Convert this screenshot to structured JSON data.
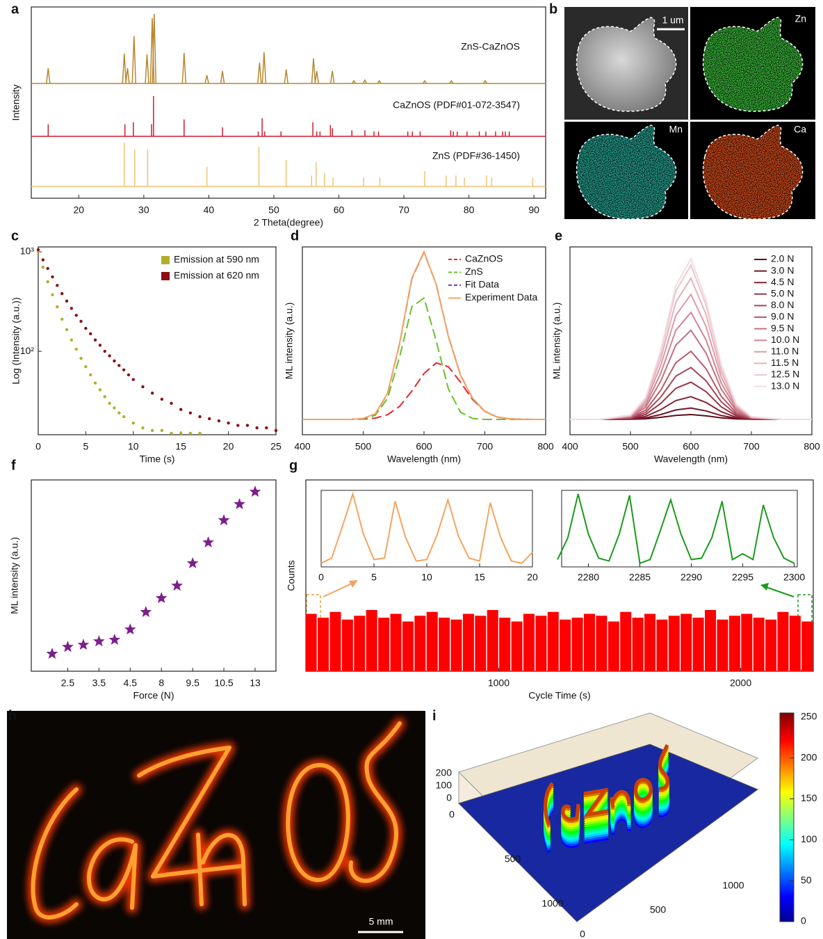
{
  "chart_data": [
    {
      "type": "xrd",
      "panel": "a",
      "xlabel": "2 Theta(degree)",
      "ylabel": "Intensity",
      "xlim": [
        12.7,
        91.8
      ],
      "xticks": [
        20,
        30,
        40,
        50,
        60,
        70,
        80,
        90
      ],
      "ylim": [
        0,
        100
      ],
      "series": [
        {
          "name": "ZnS-CaZnOS",
          "color": "#b8862b",
          "style": "pattern",
          "x": [
            15.3,
            27.0,
            27.5,
            28.5,
            30.5,
            31.3,
            31.6,
            36.2,
            39.7,
            42.1,
            47.8,
            48.5,
            51.9,
            56.1,
            56.6,
            59.0,
            62.3,
            64.0,
            66.2,
            73.2,
            77.3,
            82.5
          ],
          "values": [
            22,
            43,
            22,
            68,
            42,
            94,
            100,
            44,
            12,
            18,
            30,
            45,
            20,
            36,
            18,
            18,
            4,
            5,
            4,
            4,
            4,
            4
          ]
        },
        {
          "name": "CaZnOS (PDF#01-072-3547)",
          "color": "#d11a2a",
          "style": "sticks",
          "x": [
            15.3,
            27.1,
            28.4,
            31.2,
            31.5,
            36.2,
            42.1,
            47.6,
            48.2,
            48.6,
            51.1,
            56.0,
            56.6,
            57.1,
            58.7,
            59.0,
            62.0,
            64.0,
            65.4,
            66.1,
            70.6,
            71.3,
            72.5,
            77.2,
            77.6,
            78.2,
            79.7,
            81.6,
            82.6,
            84.1,
            85.2,
            85.6,
            86.2
          ],
          "values": [
            30,
            30,
            35,
            30,
            100,
            42,
            22,
            12,
            45,
            12,
            12,
            35,
            12,
            12,
            28,
            20,
            15,
            15,
            12,
            12,
            12,
            12,
            12,
            15,
            12,
            12,
            12,
            12,
            12,
            12,
            12,
            12,
            12
          ]
        },
        {
          "name": "ZnS (PDF#36-1450)",
          "color": "#f0c272",
          "style": "sticks",
          "x": [
            27.0,
            28.6,
            30.6,
            39.7,
            47.7,
            51.9,
            55.8,
            56.5,
            57.8,
            59.1,
            63.8,
            66.3,
            73.2,
            76.5,
            78.0,
            79.3,
            82.7,
            83.5,
            89.8
          ],
          "values": [
            100,
            85,
            85,
            45,
            90,
            60,
            25,
            55,
            30,
            20,
            20,
            20,
            35,
            25,
            25,
            20,
            25,
            20,
            20
          ]
        }
      ]
    },
    {
      "type": "image",
      "panel": "b",
      "labels": [
        "1 um",
        "Zn",
        "Mn",
        "Ca"
      ]
    },
    {
      "type": "scatter",
      "panel": "c",
      "xlabel": "Time (s)",
      "ylabel": "Log (Intensity (a.u.))",
      "log_y": true,
      "xlim": [
        0,
        25
      ],
      "xticks": [
        0,
        5,
        10,
        15,
        20,
        25
      ],
      "ylim": [
        14.5,
        1120
      ],
      "yticks": [
        {
          "value": 100,
          "label": "10²"
        },
        {
          "value": 1000,
          "label": "10³"
        }
      ],
      "series": [
        {
          "name": "Emission at 590 nm",
          "color": "#b3ad2d",
          "x": [
            0,
            0.5,
            1,
            1.5,
            2,
            2.5,
            3,
            3.5,
            4,
            4.5,
            5,
            5.5,
            6,
            6.5,
            7,
            7.5,
            8,
            8.5,
            9,
            10,
            11,
            12,
            13,
            14,
            15,
            16,
            17
          ],
          "values": [
            1000,
            700,
            500,
            370,
            280,
            210,
            165,
            130,
            105,
            85,
            70,
            58,
            48,
            41,
            35,
            30,
            27,
            24,
            22,
            19,
            17,
            16,
            16,
            15,
            15,
            15,
            15
          ]
        },
        {
          "name": "Emission at 620 nm",
          "color": "#8b0f14",
          "x": [
            0,
            0.5,
            1,
            1.5,
            2,
            2.5,
            3,
            3.5,
            4,
            4.5,
            5,
            5.5,
            6,
            6.5,
            7,
            7.5,
            8,
            8.5,
            9,
            9.5,
            10,
            11,
            12,
            13,
            14,
            15,
            16,
            17,
            18,
            19,
            20,
            21,
            22,
            23,
            24,
            25
          ],
          "values": [
            1050,
            830,
            680,
            560,
            460,
            380,
            320,
            270,
            230,
            200,
            170,
            150,
            130,
            115,
            100,
            90,
            80,
            72,
            65,
            58,
            52,
            44,
            38,
            33,
            30,
            26,
            24,
            22,
            21,
            20,
            19,
            18,
            18,
            17,
            17,
            16
          ]
        }
      ]
    },
    {
      "type": "line",
      "panel": "d",
      "xlabel": "Wavelength (nm)",
      "ylabel": "ML intensity (a.u.)",
      "xlim": [
        400,
        800
      ],
      "xticks": [
        400,
        500,
        600,
        700,
        800
      ],
      "ylim": [
        -9.4,
        106
      ],
      "x": [
        400,
        420,
        440,
        460,
        480,
        500,
        520,
        540,
        560,
        580,
        600,
        620,
        640,
        660,
        680,
        700,
        720,
        740,
        760,
        780,
        800
      ],
      "series": [
        {
          "name": "CaZnOS",
          "color": "#e8252a",
          "dash": true,
          "values": [
            0,
            0,
            0,
            0,
            0,
            0.2,
            0.8,
            2.9,
            8.1,
            17.4,
            28.2,
            34.7,
            32.4,
            22.9,
            12.2,
            5.0,
            1.5,
            0.4,
            0.1,
            0,
            0
          ]
        },
        {
          "name": "ZnS",
          "color": "#6cbf2a",
          "dash": true,
          "values": [
            0,
            0,
            0,
            0,
            0,
            0.3,
            2.6,
            12.9,
            38.6,
            69.2,
            74.6,
            48.4,
            18.8,
            4.4,
            0.6,
            0,
            0,
            0,
            0,
            0,
            0
          ]
        },
        {
          "name": "Fit Data",
          "color": "#7b3fa0",
          "dash": true,
          "values": [
            0,
            0,
            0,
            0,
            0,
            0.5,
            3.4,
            15.8,
            46.7,
            86.6,
            102.8,
            83.1,
            51.2,
            27.3,
            12.8,
            5.0,
            1.5,
            0.4,
            0.1,
            0,
            0
          ]
        },
        {
          "name": "Experiment Data",
          "color": "#f4a460",
          "dash": false,
          "values": [
            0,
            0,
            0,
            0,
            0,
            0.6,
            3.5,
            16,
            47,
            87,
            103,
            83,
            51,
            27,
            13,
            5,
            1.5,
            0.4,
            0.1,
            0,
            0
          ]
        }
      ]
    },
    {
      "type": "line",
      "panel": "e",
      "xlabel": "Wavelength (nm)",
      "ylabel": "ML intensity (a.u.)",
      "xlim": [
        400,
        800
      ],
      "xticks": [
        400,
        500,
        600,
        700,
        800
      ],
      "ylim": [
        -9.4,
        106
      ],
      "x": [
        400,
        450,
        500,
        525,
        550,
        575,
        600,
        625,
        650,
        675,
        700,
        750,
        800
      ],
      "series": [
        {
          "name": "2.0 N",
          "color": "#5e0b1c",
          "values": [
            0,
            0,
            0.1,
            0.4,
            1.3,
            2.5,
            3.0,
            2.2,
            1.0,
            0.3,
            0.1,
            0,
            0
          ]
        },
        {
          "name": "3.0 N",
          "color": "#731527",
          "values": [
            0,
            0,
            0.2,
            0.9,
            3.0,
            5.8,
            7.0,
            5.2,
            2.4,
            0.7,
            0.1,
            0,
            0
          ]
        },
        {
          "name": "4.5 N",
          "color": "#862235",
          "values": [
            0,
            0,
            0.4,
            1.9,
            6.0,
            11.6,
            14.0,
            10.4,
            4.8,
            1.3,
            0.2,
            0,
            0
          ]
        },
        {
          "name": "5.0 N",
          "color": "#983446",
          "values": [
            0,
            0,
            0.6,
            3.1,
            9.8,
            19.1,
            22.9,
            17.0,
            7.8,
            2.2,
            0.4,
            0,
            0
          ]
        },
        {
          "name": "8.0 N",
          "color": "#a84657",
          "values": [
            0,
            0,
            0.9,
            4.3,
            13.7,
            26.6,
            31.9,
            23.7,
            10.9,
            3.0,
            0.5,
            0,
            0
          ]
        },
        {
          "name": "9.0 N",
          "color": "#b75a6b",
          "values": [
            0,
            0,
            1.1,
            5.7,
            17.9,
            34.9,
            41.9,
            31.1,
            14.3,
            4.0,
            0.7,
            0,
            0
          ]
        },
        {
          "name": "9.5 N",
          "color": "#c56f80",
          "values": [
            0,
            0,
            1.5,
            7.4,
            23.5,
            45.7,
            54.8,
            40.7,
            18.7,
            5.2,
            0.9,
            0,
            0
          ]
        },
        {
          "name": "10.0 N",
          "color": "#d08593",
          "values": [
            0,
            0,
            1.8,
            8.9,
            28.2,
            54.8,
            65.8,
            48.8,
            22.4,
            6.3,
            1.1,
            0,
            0
          ]
        },
        {
          "name": "11.0 N",
          "color": "#db9ba7",
          "values": [
            0,
            0,
            2.1,
            10.4,
            32.9,
            63.9,
            76.8,
            57.0,
            26.2,
            7.3,
            1.3,
            0,
            0
          ]
        },
        {
          "name": "11.5 N",
          "color": "#e4b1ba",
          "values": [
            0,
            0,
            2.3,
            11.7,
            37.1,
            72.2,
            86.7,
            64.4,
            29.6,
            8.3,
            1.5,
            0,
            0
          ]
        },
        {
          "name": "12.5 N",
          "color": "#ecc6cd",
          "values": [
            0,
            0,
            2.6,
            12.8,
            40.6,
            78.9,
            94.7,
            70.3,
            32.3,
            9.0,
            1.6,
            0,
            0
          ]
        },
        {
          "name": "13.0 N",
          "color": "#f4dbe0",
          "values": [
            0,
            0,
            2.7,
            13.4,
            42.3,
            82.2,
            98.7,
            73.3,
            33.7,
            9.4,
            1.7,
            0,
            0
          ]
        }
      ]
    },
    {
      "type": "scatter",
      "panel": "f",
      "xlabel": "Force (N)",
      "ylabel": "ML intensity (a.u.)",
      "marker": "star",
      "color": "#7b1f8c",
      "categories": [
        null,
        "2.5",
        null,
        "3.5",
        null,
        "4.5",
        null,
        "8",
        null,
        "9.5",
        null,
        "10.5",
        null,
        "13"
      ],
      "values": [
        9.1,
        12.7,
        13.8,
        15.6,
        16.4,
        21.8,
        30.9,
        38.2,
        44.7,
        56.4,
        67.3,
        78.9,
        87.3,
        93.8
      ],
      "ylim": [
        0,
        100
      ]
    },
    {
      "type": "bar",
      "panel": "g",
      "xlabel": "Cycle Time (s)",
      "ylabel": "Counts",
      "color": "#ff0000",
      "xlim": [
        203,
        2300
      ],
      "xticks": [
        1000,
        2000
      ],
      "ylim": [
        0,
        100
      ],
      "x": [
        225,
        275,
        325,
        375,
        425,
        475,
        525,
        575,
        625,
        675,
        725,
        775,
        825,
        875,
        925,
        975,
        1025,
        1075,
        1125,
        1175,
        1225,
        1275,
        1325,
        1375,
        1425,
        1475,
        1525,
        1575,
        1625,
        1675,
        1725,
        1775,
        1825,
        1875,
        1925,
        1975,
        2025,
        2075,
        2125,
        2175,
        2225,
        2275
      ],
      "values": [
        30,
        28,
        31,
        27,
        29,
        32,
        28,
        30,
        26,
        29,
        31,
        28,
        27,
        30,
        29,
        32,
        28,
        26,
        30,
        29,
        31,
        27,
        28,
        30,
        29,
        26,
        31,
        28,
        30,
        27,
        29,
        30,
        28,
        32,
        27,
        29,
        30,
        28,
        27,
        31,
        29,
        26
      ],
      "insets": [
        {
          "color": "#f4a460",
          "xlim": [
            0,
            20
          ],
          "xticks": [
            0,
            5,
            10,
            15,
            20
          ],
          "ylim": [
            0,
            105
          ],
          "x": [
            0,
            1,
            2,
            3,
            4,
            5,
            6,
            7,
            8,
            9,
            10,
            11,
            12,
            13,
            14,
            15,
            16,
            17,
            18,
            19,
            20
          ],
          "values": [
            5,
            12,
            55,
            100,
            45,
            10,
            12,
            90,
            40,
            8,
            10,
            45,
            92,
            42,
            12,
            8,
            88,
            40,
            8,
            5,
            20
          ]
        },
        {
          "color": "#1a9a1a",
          "xlim": [
            2277.4,
            2300.3
          ],
          "xticks": [
            2280,
            2285,
            2290,
            2295,
            2300
          ],
          "ylim": [
            0,
            105
          ],
          "x": [
            2277,
            2278,
            2279,
            2280,
            2281,
            2282,
            2283,
            2284,
            2285,
            2286,
            2287,
            2288,
            2289,
            2290,
            2291,
            2292,
            2293,
            2294,
            2295,
            2296,
            2297,
            2298,
            2299,
            2300
          ],
          "values": [
            10,
            40,
            100,
            45,
            12,
            8,
            45,
            98,
            5,
            10,
            50,
            92,
            45,
            10,
            12,
            40,
            90,
            10,
            18,
            10,
            85,
            40,
            12,
            5
          ]
        }
      ]
    },
    {
      "type": "image",
      "panel": "h",
      "labels": [
        "5 mm"
      ]
    },
    {
      "type": "surface3d",
      "panel": "i",
      "xlim": [
        0,
        1200
      ],
      "xticks": [
        0,
        500,
        1000
      ],
      "ylim": [
        0,
        1200
      ],
      "yticks": [
        0,
        500,
        1000
      ],
      "zlim": [
        0,
        255
      ],
      "zticks": [
        0,
        100,
        200
      ],
      "colorbar_lim": [
        0,
        255
      ],
      "colorbar_ticks": [
        0,
        50,
        100,
        150,
        200,
        250
      ]
    }
  ]
}
